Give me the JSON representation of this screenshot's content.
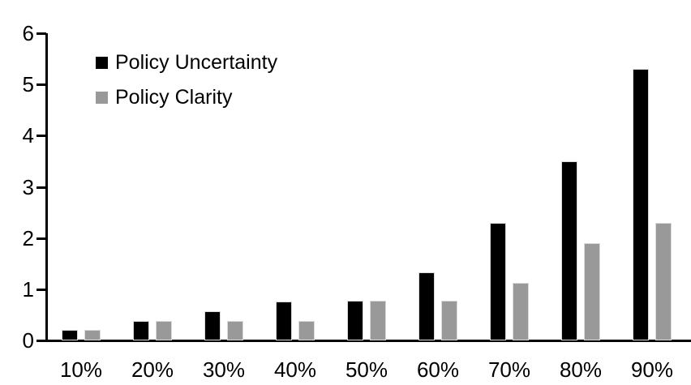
{
  "chart_data": {
    "type": "bar",
    "categories": [
      "10%",
      "20%",
      "30%",
      "40%",
      "50%",
      "60%",
      "70%",
      "80%",
      "90%"
    ],
    "series": [
      {
        "name": "Policy Uncertainty",
        "color": "#000000",
        "values": [
          0.2,
          0.38,
          0.57,
          0.76,
          0.78,
          1.33,
          2.3,
          3.5,
          5.3
        ]
      },
      {
        "name": "Policy Clarity",
        "color": "#999999",
        "values": [
          0.2,
          0.38,
          0.38,
          0.38,
          0.77,
          0.77,
          1.13,
          1.9,
          2.3
        ]
      }
    ],
    "ylim": [
      0,
      6
    ],
    "yticks": [
      0,
      1,
      2,
      3,
      4,
      5,
      6
    ],
    "grid": false,
    "legend_position": "top-left",
    "axis_color": "#000000",
    "bar_border_color": "#d9d9d9"
  }
}
